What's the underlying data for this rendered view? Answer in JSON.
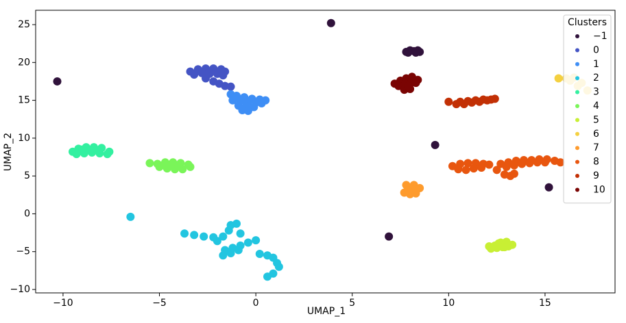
{
  "chart_data": {
    "type": "scatter",
    "xlabel": "UMAP_1",
    "ylabel": "UMAP_2",
    "legend_title": "Clusters",
    "legend": "upper right",
    "grid": false,
    "xlim": [
      -11.42,
      18.63
    ],
    "ylim": [
      -10.45,
      26.9
    ],
    "xticks": [
      {
        "value": -10,
        "label": "−10"
      },
      {
        "value": -5,
        "label": "−5"
      },
      0,
      5,
      10,
      15
    ],
    "yticks": [
      {
        "value": -10,
        "label": "−10"
      },
      {
        "value": -5,
        "label": "−5"
      },
      0,
      5,
      10,
      15,
      20,
      25
    ],
    "series": [
      {
        "name": "−1",
        "color": "#30123b",
        "x": [
          3.9,
          -10.3,
          9.3,
          15.2,
          6.9,
          7.8,
          8.0,
          8.2,
          8.4,
          8.5,
          7.9,
          8.3
        ],
        "y": [
          25.2,
          17.5,
          9.1,
          3.5,
          -3.0,
          21.4,
          21.6,
          21.5,
          21.6,
          21.4,
          21.3,
          21.3
        ]
      },
      {
        "name": "0",
        "color": "#4454c4",
        "x": [
          -3.4,
          -3.0,
          -2.6,
          -2.2,
          -1.8,
          -1.6,
          -3.2,
          -2.8,
          -2.4,
          -2.0,
          -1.7,
          -2.6,
          -2.2,
          -1.9,
          -1.6,
          -1.3
        ],
        "y": [
          18.8,
          19.1,
          19.2,
          19.2,
          19.1,
          18.8,
          18.4,
          18.6,
          18.5,
          18.5,
          18.3,
          17.9,
          17.5,
          17.2,
          16.9,
          16.8
        ]
      },
      {
        "name": "1",
        "color": "#3e8ef5",
        "x": [
          -1.3,
          -1.0,
          -0.6,
          -0.2,
          0.2,
          0.5,
          -1.2,
          -0.8,
          -0.4,
          0.0,
          0.3,
          -0.9,
          -0.5,
          -0.1,
          -0.7,
          -0.4
        ],
        "y": [
          15.8,
          15.6,
          15.4,
          15.2,
          15.1,
          15.0,
          15.0,
          14.9,
          14.8,
          14.7,
          14.6,
          14.3,
          14.2,
          14.1,
          13.7,
          13.6
        ]
      },
      {
        "name": "2",
        "color": "#22c5e0",
        "x": [
          -6.5,
          -3.7,
          -3.2,
          -2.7,
          -2.2,
          -1.7,
          -1.3,
          -1.0,
          -1.4,
          -0.8,
          -2.0,
          -1.6,
          -1.2,
          -0.8,
          -0.4,
          0.0,
          -1.7,
          -1.3,
          -0.9,
          0.2,
          0.6,
          0.9,
          1.1,
          1.2,
          0.6,
          0.9
        ],
        "y": [
          -0.4,
          -2.6,
          -2.8,
          -3.0,
          -3.1,
          -3.0,
          -1.5,
          -1.3,
          -2.2,
          -2.6,
          -3.6,
          -4.8,
          -4.5,
          -4.2,
          -3.8,
          -3.5,
          -5.5,
          -5.2,
          -4.8,
          -5.3,
          -5.5,
          -5.8,
          -6.5,
          -7.0,
          -8.3,
          -7.9
        ]
      },
      {
        "name": "3",
        "color": "#33f0a0",
        "x": [
          -9.5,
          -9.2,
          -8.8,
          -8.4,
          -8.0,
          -7.6,
          -9.3,
          -8.9,
          -8.5,
          -8.1,
          -7.7,
          -9.0,
          -8.6,
          -8.2
        ],
        "y": [
          8.2,
          8.6,
          8.8,
          8.8,
          8.7,
          8.2,
          7.9,
          8.0,
          8.1,
          8.0,
          7.9,
          8.5,
          8.4,
          8.4
        ]
      },
      {
        "name": "4",
        "color": "#7af559",
        "x": [
          -5.5,
          -5.1,
          -4.7,
          -4.3,
          -3.9,
          -3.5,
          -5.0,
          -4.6,
          -4.2,
          -3.8,
          -3.4,
          -4.8,
          -4.4,
          -4.0
        ],
        "y": [
          6.7,
          6.6,
          6.8,
          6.8,
          6.7,
          6.5,
          6.2,
          6.0,
          5.9,
          5.9,
          6.2,
          6.4,
          6.4,
          6.3
        ]
      },
      {
        "name": "5",
        "color": "#c8ef34",
        "x": [
          12.1,
          12.4,
          12.7,
          13.0,
          13.3,
          12.6,
          12.9,
          12.2,
          12.5,
          12.8,
          13.1
        ],
        "y": [
          -4.3,
          -4.2,
          -3.8,
          -3.7,
          -4.1,
          -3.9,
          -4.4,
          -4.6,
          -4.5,
          -4.4,
          -4.3
        ]
      },
      {
        "name": "6",
        "color": "#f4d040",
        "x": [
          15.7,
          16.1,
          16.5,
          16.9,
          17.2,
          16.3,
          16.7
        ],
        "y": [
          17.9,
          17.9,
          18.0,
          17.3,
          16.3,
          17.6,
          16.9
        ]
      },
      {
        "name": "7",
        "color": "#fe9b2d",
        "x": [
          7.8,
          8.2,
          8.5,
          7.7,
          8.0,
          8.3,
          8.1,
          7.9
        ],
        "y": [
          3.8,
          3.8,
          3.4,
          2.8,
          2.6,
          2.7,
          3.2,
          3.1
        ]
      },
      {
        "name": "8",
        "color": "#e8560f",
        "x": [
          10.2,
          10.6,
          11.0,
          11.4,
          11.8,
          12.1,
          10.5,
          10.9,
          11.3,
          11.7,
          12.7,
          13.1,
          13.5,
          13.9,
          14.3,
          14.7,
          15.1,
          15.5,
          15.8,
          13.0,
          13.4,
          13.8,
          14.2,
          14.6,
          15.0,
          12.9,
          13.2,
          13.4,
          12.5
        ],
        "y": [
          6.3,
          6.6,
          6.7,
          6.7,
          6.6,
          6.5,
          5.9,
          5.8,
          6.0,
          6.1,
          6.6,
          6.8,
          7.0,
          7.1,
          7.1,
          7.2,
          7.2,
          7.0,
          6.8,
          6.2,
          6.4,
          6.6,
          6.7,
          6.8,
          6.8,
          5.2,
          5.0,
          5.3,
          5.8
        ]
      },
      {
        "name": "9",
        "color": "#c23005",
        "x": [
          10.0,
          10.4,
          10.8,
          11.2,
          11.6,
          12.0,
          12.4,
          10.6,
          11.0,
          11.4,
          11.8,
          12.2
        ],
        "y": [
          14.8,
          14.5,
          14.5,
          14.7,
          14.8,
          15.0,
          15.2,
          14.8,
          14.9,
          15.0,
          15.1,
          15.1
        ]
      },
      {
        "name": "10",
        "color": "#7a0403",
        "x": [
          7.2,
          7.5,
          7.8,
          8.1,
          8.4,
          7.4,
          7.7,
          8.0,
          8.3,
          7.7,
          8.0,
          7.9
        ],
        "y": [
          17.2,
          17.6,
          17.9,
          18.1,
          17.7,
          16.9,
          17.0,
          17.2,
          17.3,
          16.4,
          16.5,
          16.9
        ]
      }
    ]
  }
}
